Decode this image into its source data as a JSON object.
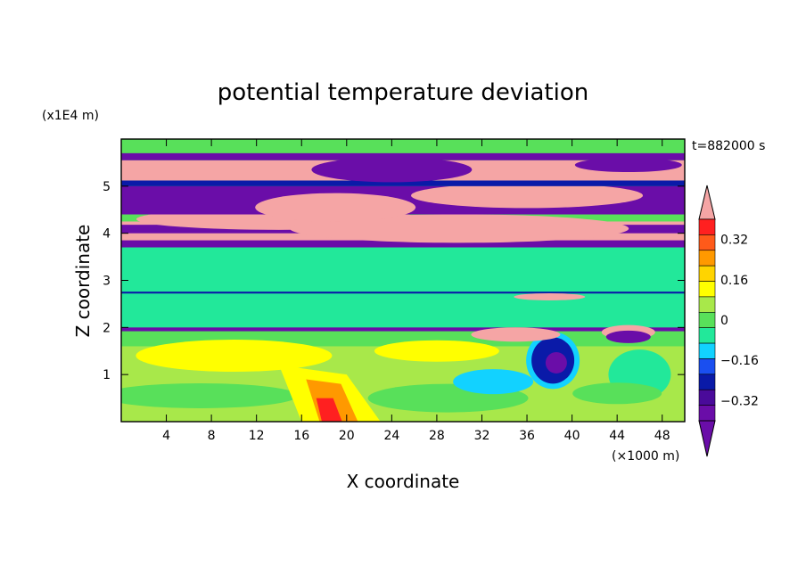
{
  "chart_data": {
    "type": "heatmap",
    "title": "potential temperature deviation",
    "xlabel": "X coordinate",
    "ylabel": "Z coordinate",
    "x_unit": "(×1000 m)",
    "y_unit": "(x1E4 m)",
    "time_label": "t=882000 s",
    "xlim": [
      0,
      50
    ],
    "ylim": [
      0,
      6
    ],
    "x_ticks": [
      4,
      8,
      12,
      16,
      20,
      24,
      28,
      32,
      36,
      40,
      44,
      48
    ],
    "y_ticks": [
      1,
      2,
      3,
      4,
      5
    ],
    "colorbar": {
      "bin_colors": [
        "#6a0da8",
        "#4a0a9a",
        "#0a1aa8",
        "#1a4ff0",
        "#12d2ff",
        "#22e89a",
        "#58e05a",
        "#a8e84a",
        "#ffff00",
        "#ffd400",
        "#ff9900",
        "#ff5a1a",
        "#ff2020"
      ],
      "over_color": "#f5a5a5",
      "under_color": "#6a0da8",
      "tick_labels": [
        "0.32",
        "0.16",
        "0",
        "−0.16",
        "−0.32"
      ],
      "tick_values": [
        0.32,
        0.16,
        0,
        -0.16,
        -0.32
      ]
    },
    "colors": {
      "pink": "#f5a5a5",
      "purple": "#6a0da8",
      "green": "#58e05a",
      "sea_green": "#22e89a",
      "lime": "#a8e84a",
      "yellow": "#ffff00",
      "orange": "#ff9900",
      "red": "#ff2020",
      "cyan": "#12d2ff",
      "blue": "#0a1aa8"
    }
  }
}
